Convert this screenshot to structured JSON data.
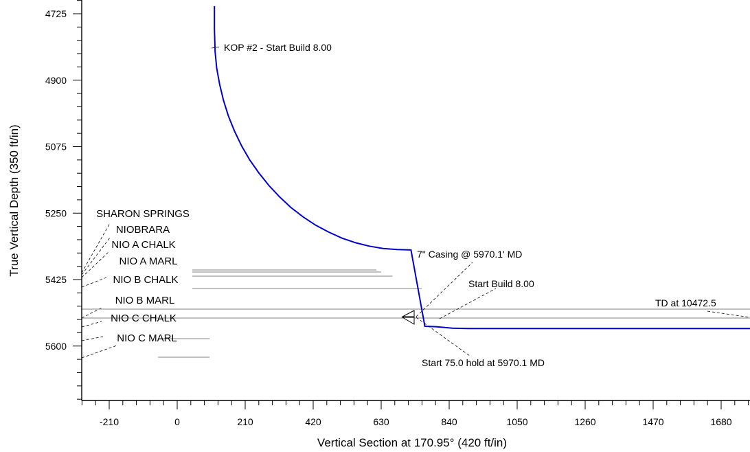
{
  "chart_data": {
    "type": "line",
    "title": "",
    "xlabel": "Vertical Section at 170.95° (420 ft/in)",
    "ylabel": "True Vertical Depth (350 ft/in)",
    "xlim": [
      -300,
      1830
    ],
    "ylim": [
      4705,
      5890
    ],
    "y_inverted": true,
    "grid": false,
    "x_ticks": [
      -210,
      0,
      210,
      420,
      630,
      840,
      1050,
      1260,
      1470,
      1680
    ],
    "y_ticks": [
      4725,
      4900,
      5075,
      5250,
      5425,
      5600
    ],
    "x_tick_labels": [
      "-210",
      "0",
      "210",
      "420",
      "630",
      "840",
      "1050",
      "1260",
      "1470",
      "1680"
    ],
    "y_tick_labels": [
      "4725",
      "4900",
      "5075",
      "5250",
      "5425",
      "5600"
    ],
    "colors": {
      "wellpath": "#0000cc",
      "formation_lines": "#808080",
      "axes": "#000000"
    },
    "series": [
      {
        "x": [
          115,
          115,
          117,
          122,
          131,
          143,
          158,
          177,
          199,
          224,
          252,
          283,
          316,
          351,
          389,
          428,
          468,
          509,
          551,
          593,
          636,
          679,
          722,
          765,
          800,
          850,
          900,
          1000,
          1200,
          1500,
          1830
        ],
        "y": [
          4705,
          4765,
          4825,
          4868,
          4911,
          4953,
          4994,
          5034,
          5073,
          5110,
          5144,
          5177,
          5207,
          5235,
          5260,
          5282,
          5300,
          5316,
          5328,
          5337,
          5343,
          5346,
          5347,
          5548,
          5549,
          5553,
          5554,
          5554,
          5554,
          5554,
          5554
        ]
      }
    ],
    "formations": [
      {
        "name": "SHARON SPRINGS",
        "tvd": 5415,
        "x_end": 615
      },
      {
        "name": "NIOBRARA",
        "tvd": 5420,
        "x_end": 630
      },
      {
        "name": "NIO A CHALK",
        "tvd": 5427,
        "x_end": 665
      },
      {
        "name": "NIO A MARL",
        "tvd": 5452,
        "x_end": 755
      },
      {
        "name": "NIO B CHALK",
        "tvd": 5527,
        "x_end": 1830
      },
      {
        "name": "NIO B MARL",
        "tvd": 5550,
        "x_end": 1830
      },
      {
        "name": "NIO C CHALK",
        "tvd": 5587,
        "x_end": 100
      },
      {
        "name": "NIO C MARL",
        "tvd": 5639,
        "x_end": 100
      }
    ],
    "annotations": [
      {
        "text": "KOP #2 - Start Build 8.00",
        "x": 115,
        "y": 4800
      },
      {
        "text": "7\" Casing @ 5970.1' MD",
        "x": 765,
        "y": 5550
      },
      {
        "text": "Start Build 8.00",
        "x": 850,
        "y": 5553
      },
      {
        "text": "TD at 10472.5",
        "x": 1830,
        "y": 5554
      },
      {
        "text": "Start 75.0 hold at 5970.1 MD",
        "x": 765,
        "y": 5552
      }
    ]
  }
}
